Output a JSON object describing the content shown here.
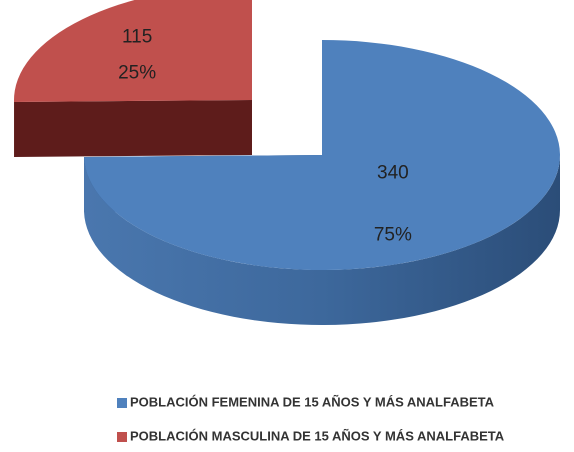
{
  "chart_data": {
    "type": "pie3d",
    "categories": [
      "POBLACIÓN FEMENINA DE 15 AÑOS Y MÁS ANALFABETA",
      "POBLACIÓN MASCULINA DE 15 AÑOS Y MÁS ANALFABETA"
    ],
    "values": [
      340,
      115
    ],
    "percent_labels": [
      "75%",
      "25%"
    ],
    "colors": [
      "#4f81bd",
      "#c0504d"
    ],
    "exploded": [
      false,
      true
    ],
    "legend": "bottom"
  }
}
